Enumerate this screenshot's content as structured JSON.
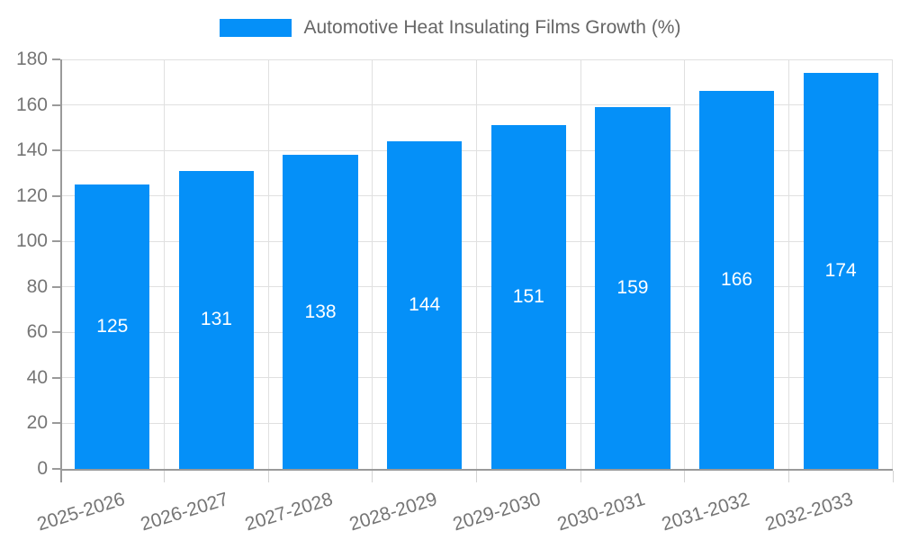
{
  "chart_data": {
    "type": "bar",
    "title": "Automotive Heat Insulating Films Growth (%)",
    "legend_entries": [
      "Automotive Heat Insulating Films Growth (%)"
    ],
    "legend_position": "top",
    "categories": [
      "2025-2026",
      "2026-2027",
      "2027-2028",
      "2028-2029",
      "2029-2030",
      "2030-2031",
      "2031-2032",
      "2032-2033"
    ],
    "values": [
      125,
      131,
      138,
      144,
      151,
      159,
      166,
      174
    ],
    "xlabel": "",
    "ylabel": "",
    "ylim": [
      0,
      180
    ],
    "ytick_step": 20,
    "yticks": [
      0,
      20,
      40,
      60,
      80,
      100,
      120,
      140,
      160,
      180
    ],
    "grid": true,
    "value_label_position": "inside-center",
    "colors": {
      "bar": "#0590F8",
      "value_label": "#FFFFFF",
      "axis": "#9A9A9A",
      "grid": "#E0E0E0",
      "tick_label": "#757575",
      "legend_text": "#666666",
      "background": "#FFFFFF"
    }
  }
}
